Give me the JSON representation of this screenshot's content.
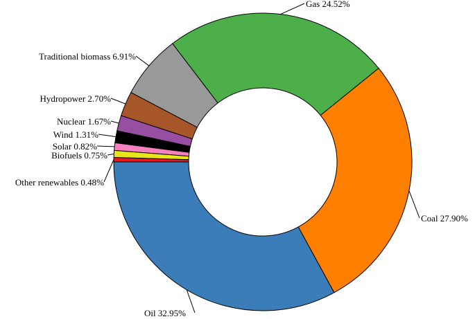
{
  "chart_data": {
    "type": "pie",
    "donut": true,
    "title": "",
    "slices": [
      {
        "label": "Oil",
        "value": 32.95,
        "color": "#3a7db8",
        "text": "Oil 32.95%"
      },
      {
        "label": "Coal",
        "value": 27.9,
        "color": "#ff7f00",
        "text": "Coal 27.90%"
      },
      {
        "label": "Gas",
        "value": 24.52,
        "color": "#4daf4a",
        "text": "Gas 24.52%"
      },
      {
        "label": "Traditional biomass",
        "value": 6.91,
        "color": "#999999",
        "text": "Traditional biomass 6.91%"
      },
      {
        "label": "Hydropower",
        "value": 2.7,
        "color": "#a65628",
        "text": "Hydropower 2.70%"
      },
      {
        "label": "Nuclear",
        "value": 1.67,
        "color": "#984ea3",
        "text": "Nuclear 1.67%"
      },
      {
        "label": "Wind",
        "value": 1.31,
        "color": "#000000",
        "text": "Wind 1.31%"
      },
      {
        "label": "Solar",
        "value": 0.82,
        "color": "#f781bf",
        "text": "Solar 0.82%"
      },
      {
        "label": "Biofuels",
        "value": 0.75,
        "color": "#e6e61a",
        "text": "Biofuels 0.75%"
      },
      {
        "label": "Other renewables",
        "value": 0.48,
        "color": "#e41a1c",
        "text": "Other renewables 0.48%"
      }
    ]
  }
}
